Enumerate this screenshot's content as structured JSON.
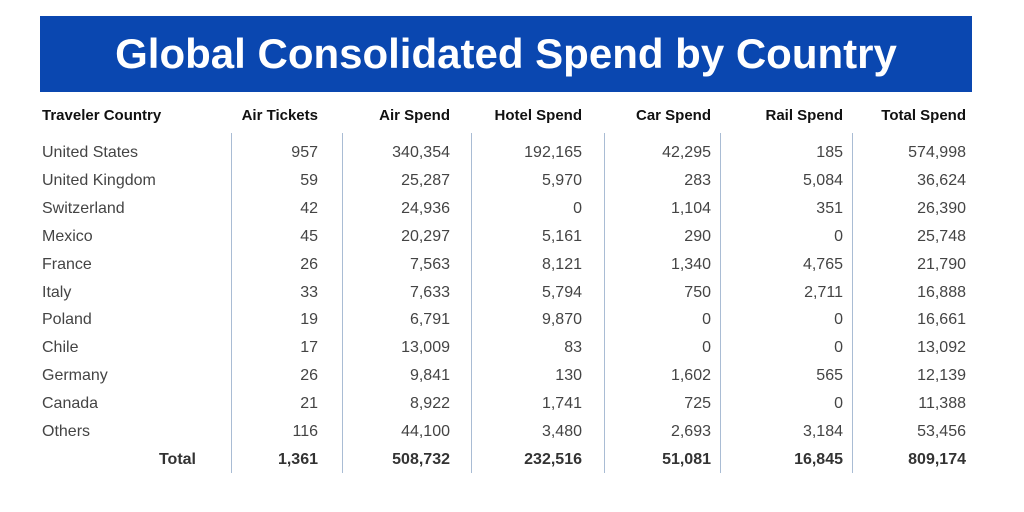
{
  "title": "Global Consolidated Spend by Country",
  "accent_color": "#0a47b0",
  "headers": [
    "Traveler Country",
    "Air Tickets",
    "Air Spend",
    "Hotel Spend",
    "Car Spend",
    "Rail Spend",
    "Total Spend"
  ],
  "rows": [
    [
      "United States",
      "957",
      "340,354",
      "192,165",
      "42,295",
      "185",
      "574,998"
    ],
    [
      "United Kingdom",
      "59",
      "25,287",
      "5,970",
      "283",
      "5,084",
      "36,624"
    ],
    [
      "Switzerland",
      "42",
      "24,936",
      "0",
      "1,104",
      "351",
      "26,390"
    ],
    [
      "Mexico",
      "45",
      "20,297",
      "5,161",
      "290",
      "0",
      "25,748"
    ],
    [
      "France",
      "26",
      "7,563",
      "8,121",
      "1,340",
      "4,765",
      "21,790"
    ],
    [
      "Italy",
      "33",
      "7,633",
      "5,794",
      "750",
      "2,711",
      "16,888"
    ],
    [
      "Poland",
      "19",
      "6,791",
      "9,870",
      "0",
      "0",
      "16,661"
    ],
    [
      "Chile",
      "17",
      "13,009",
      "83",
      "0",
      "0",
      "13,092"
    ],
    [
      "Germany",
      "26",
      "9,841",
      "130",
      "1,602",
      "565",
      "12,139"
    ],
    [
      "Canada",
      "21",
      "8,922",
      "1,741",
      "725",
      "0",
      "11,388"
    ],
    [
      "Others",
      "116",
      "44,100",
      "3,480",
      "2,693",
      "3,184",
      "53,456"
    ]
  ],
  "total": [
    "Total",
    "1,361",
    "508,732",
    "232,516",
    "51,081",
    "16,845",
    "809,174"
  ]
}
